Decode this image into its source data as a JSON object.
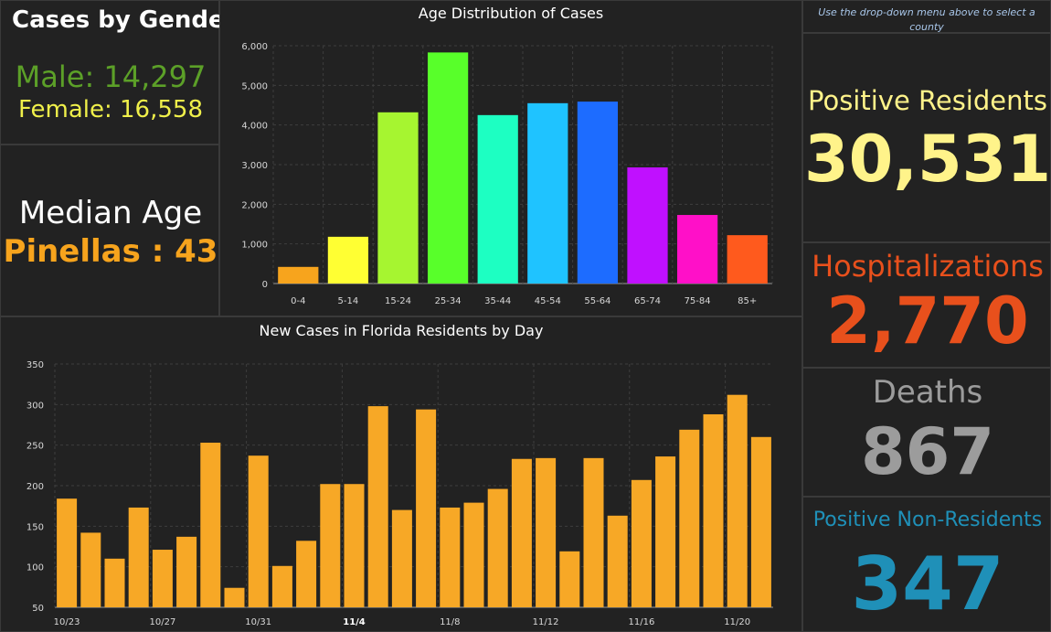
{
  "gender": {
    "title": "Cases by Gender",
    "male": "Male: 14,297",
    "female": "Female: 16,558"
  },
  "median": {
    "label": "Median Age",
    "value": "Pinellas : 43"
  },
  "hint": "Use the drop-down menu above to select a county",
  "stats": {
    "positive_label": "Positive Residents",
    "positive_value": "30,531",
    "hosp_label": "Hospitalizations",
    "hosp_value": "2,770",
    "deaths_label": "Deaths",
    "deaths_value": "867",
    "nonres_label": "Positive Non-Residents",
    "nonres_value": "347"
  },
  "colors": {
    "background": "#222222",
    "male": "#5ca028",
    "female": "#f0f04a",
    "median_value": "#f7a41d",
    "positive": "#fff38a",
    "hospitalizations": "#e8501c",
    "deaths": "#9c9c9c",
    "non_residents": "#1f90b8",
    "daily_bars": "#f7a826"
  },
  "chart_data": [
    {
      "type": "bar",
      "title": "Age Distribution of Cases",
      "categories": [
        "0-4",
        "5-14",
        "15-24",
        "25-34",
        "35-44",
        "45-54",
        "55-64",
        "65-74",
        "75-84",
        "85+"
      ],
      "values": [
        420,
        1180,
        4320,
        5830,
        4250,
        4550,
        4590,
        2930,
        1730,
        1220
      ],
      "bar_colors": [
        "#f7a41d",
        "#ffff33",
        "#a6f530",
        "#58ff2a",
        "#1dffc2",
        "#1fc3ff",
        "#1d6cff",
        "#c010ff",
        "#ff10c8",
        "#ff5a1d"
      ],
      "y_ticks": [
        "0",
        "1,000",
        "2,000",
        "3,000",
        "4,000",
        "5,000",
        "6,000"
      ],
      "ylim": [
        0,
        6000
      ],
      "grid": true
    },
    {
      "type": "bar",
      "title": "New Cases in Florida Residents by Day",
      "categories": [
        "10/23",
        "10/24",
        "10/25",
        "10/26",
        "10/27",
        "10/28",
        "10/29",
        "10/30",
        "10/31",
        "11/1",
        "11/2",
        "11/3",
        "11/4",
        "11/5",
        "11/6",
        "11/7",
        "11/8",
        "11/9",
        "11/10",
        "11/11",
        "11/12",
        "11/13",
        "11/14",
        "11/15",
        "11/16",
        "11/17",
        "11/18",
        "11/19",
        "11/20",
        "11/21"
      ],
      "values": [
        184,
        142,
        110,
        173,
        121,
        137,
        253,
        74,
        237,
        101,
        132,
        202,
        202,
        298,
        170,
        294,
        173,
        179,
        196,
        233,
        234,
        119,
        234,
        163,
        207,
        236,
        269,
        288,
        312,
        260
      ],
      "x_tick_labels": {
        "0": "10/23",
        "4": "10/27",
        "8": "10/31",
        "12": "11/4",
        "16": "11/8",
        "20": "11/12",
        "24": "11/16",
        "28": "11/20"
      },
      "bold_tick": "11/4",
      "y_ticks": [
        "50",
        "100",
        "150",
        "200",
        "250",
        "300",
        "350"
      ],
      "ylim": [
        50,
        350
      ],
      "grid": true
    }
  ]
}
